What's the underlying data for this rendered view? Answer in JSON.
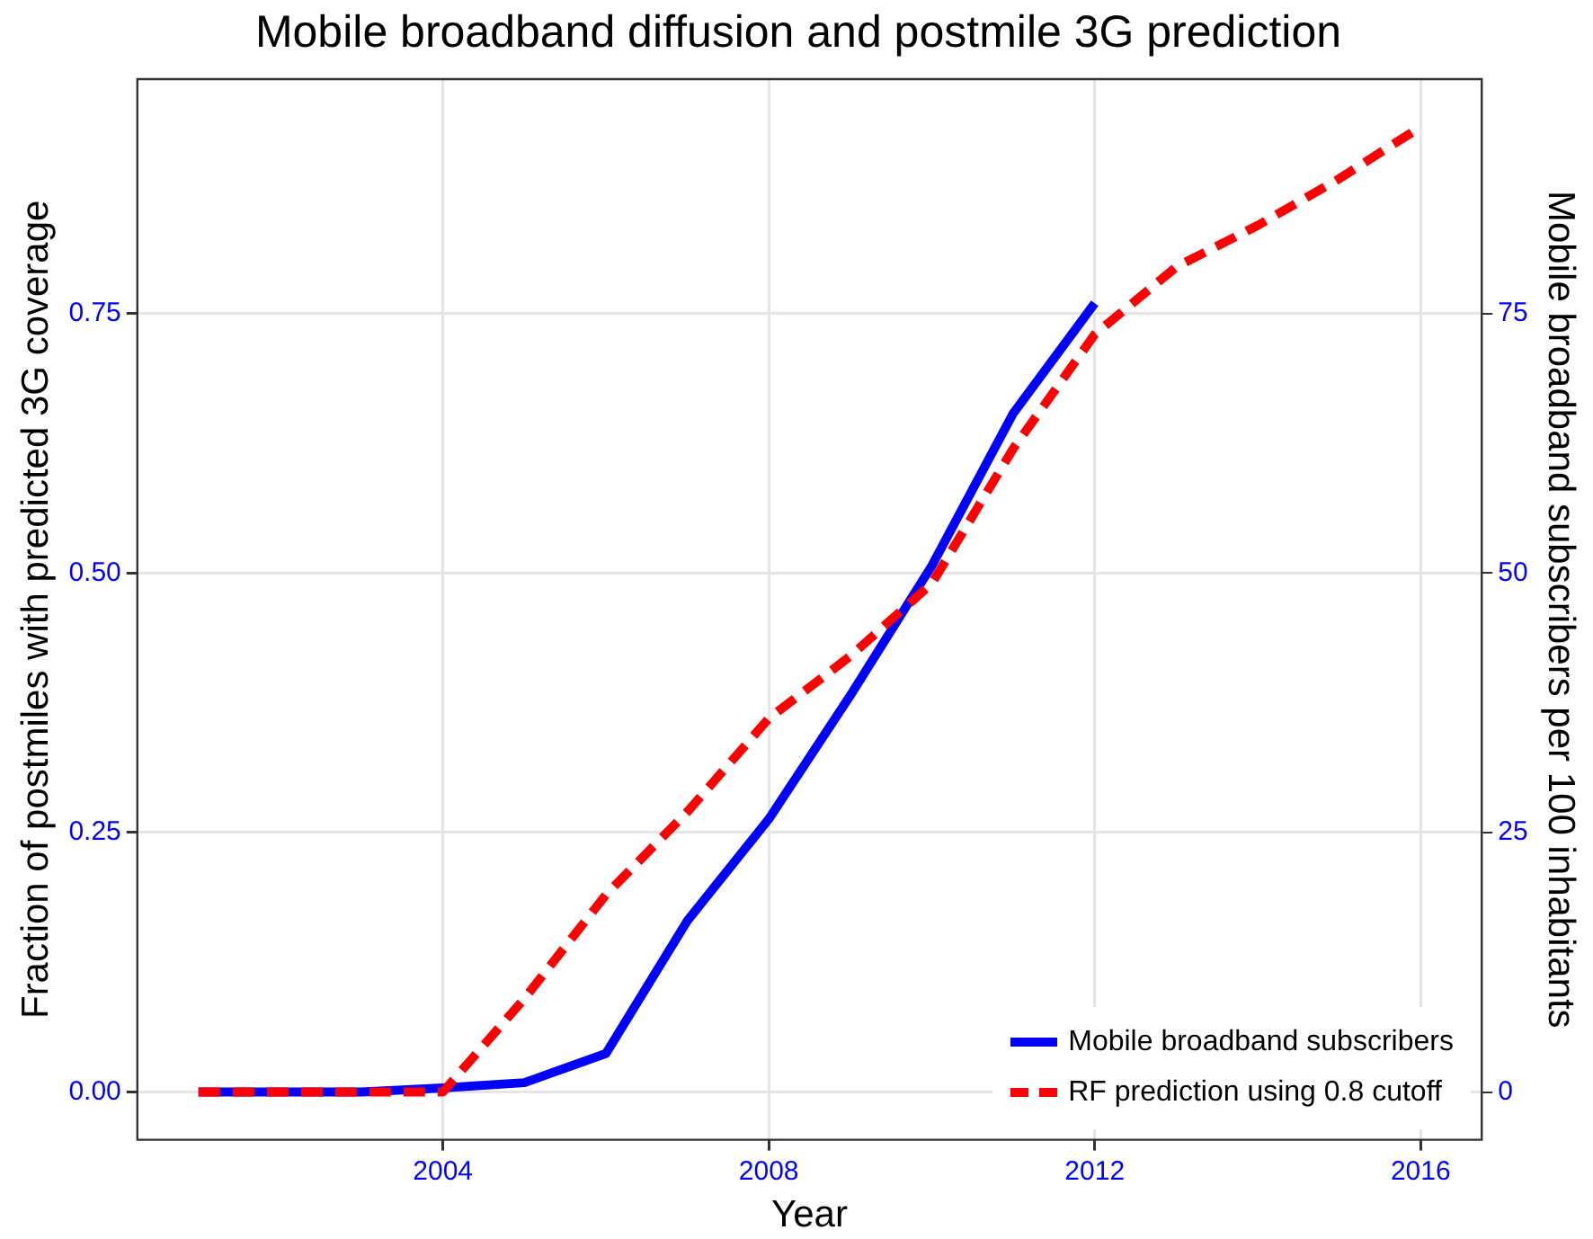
{
  "chart_data": {
    "type": "line",
    "title": "Mobile broadband diffusion and postmile 3G prediction",
    "xlabel": "Year",
    "ylabel": "Fraction of postmiles with predicted 3G coverage",
    "y2label": "Mobile broadband subscribers per 100 inhabitants",
    "xlim": [
      2000.25,
      2016.75
    ],
    "xticks": [
      2004,
      2008,
      2012,
      2016
    ],
    "ylim": [
      -0.046,
      0.976
    ],
    "yticks": [
      {
        "value": 0,
        "label": "0.00"
      },
      {
        "value": 0.25,
        "label": "0.25"
      },
      {
        "value": 0.5,
        "label": "0.50"
      },
      {
        "value": 0.75,
        "label": "0.75"
      }
    ],
    "y2lim": [
      -4.6,
      97.6
    ],
    "y2ticks": [
      0,
      25,
      50,
      75
    ],
    "grid": true,
    "legend": "bottom right",
    "marker": "none",
    "series": [
      {
        "name": "Mobile broadband subscribers",
        "color": "#0000ff",
        "axis": "y2",
        "line_style": "solid",
        "x": [
          2001,
          2002,
          2003,
          2004,
          2005,
          2006,
          2007,
          2008,
          2009,
          2010,
          2011,
          2012
        ],
        "values": [
          0,
          0,
          0,
          0.4,
          0.9,
          3.7,
          16.5,
          26.3,
          38.2,
          50.7,
          65.4,
          76
        ]
      },
      {
        "name": "RF prediction using 0.8 cutoff",
        "color": "#ff0000",
        "axis": "y",
        "line_style": "dashed",
        "x": [
          2001,
          2002,
          2003,
          2004,
          2005,
          2006,
          2007,
          2008,
          2009,
          2010,
          2011,
          2012,
          2013,
          2014,
          2015,
          2016
        ],
        "values": [
          0,
          0,
          0,
          0,
          0.09,
          0.19,
          0.27,
          0.36,
          0.42,
          0.49,
          0.62,
          0.73,
          0.795,
          0.835,
          0.88,
          0.93
        ]
      }
    ]
  }
}
